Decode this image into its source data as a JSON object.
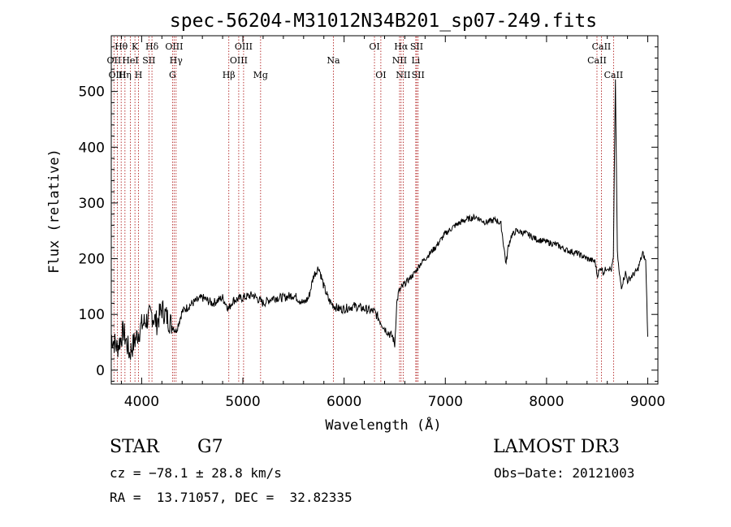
{
  "chart_data": {
    "type": "line",
    "title": "spec-56204-M31012N34B201_sp07-249.fits",
    "xlabel": "Wavelength (Å)",
    "ylabel": "Flux (relative)",
    "xlim": [
      3700,
      9100
    ],
    "ylim": [
      -25,
      600
    ],
    "x_ticks": [
      4000,
      5000,
      6000,
      7000,
      8000,
      9000
    ],
    "x_tick_labels": [
      "4000",
      "5000",
      "6000",
      "7000",
      "8000",
      "9000"
    ],
    "y_ticks": [
      0,
      100,
      200,
      300,
      400,
      500
    ],
    "y_tick_labels": [
      "0",
      "100",
      "200",
      "300",
      "400",
      "500"
    ],
    "grid": false,
    "series": [
      {
        "name": "spectrum",
        "color": "#000000",
        "x": [
          3700,
          3760,
          3820,
          3880,
          3950,
          4000,
          4050,
          4100,
          4150,
          4200,
          4250,
          4300,
          4340,
          4400,
          4500,
          4600,
          4700,
          4800,
          4860,
          4900,
          5000,
          5100,
          5200,
          5300,
          5400,
          5500,
          5600,
          5650,
          5700,
          5750,
          5800,
          5850,
          5900,
          5950,
          6000,
          6100,
          6200,
          6300,
          6350,
          6400,
          6450,
          6480,
          6500,
          6520,
          6540,
          6560,
          6580,
          6600,
          6650,
          6700,
          6750,
          6800,
          6900,
          7000,
          7100,
          7200,
          7300,
          7400,
          7500,
          7550,
          7600,
          7620,
          7650,
          7700,
          7800,
          7900,
          8000,
          8100,
          8200,
          8300,
          8400,
          8480,
          8500,
          8540,
          8560,
          8600,
          8640,
          8660,
          8680,
          8700,
          8720,
          8740,
          8780,
          8800,
          8850,
          8900,
          8950,
          8980,
          9000
        ],
        "y": [
          60,
          40,
          70,
          30,
          60,
          80,
          90,
          100,
          85,
          110,
          95,
          80,
          70,
          105,
          120,
          130,
          120,
          130,
          110,
          125,
          130,
          135,
          120,
          130,
          130,
          135,
          120,
          130,
          170,
          185,
          150,
          125,
          115,
          110,
          110,
          115,
          110,
          105,
          90,
          75,
          65,
          60,
          45,
          120,
          140,
          145,
          150,
          155,
          165,
          175,
          190,
          200,
          220,
          245,
          260,
          270,
          275,
          265,
          270,
          262,
          190,
          220,
          240,
          250,
          245,
          235,
          230,
          225,
          215,
          210,
          200,
          195,
          170,
          185,
          175,
          185,
          180,
          200,
          520,
          210,
          170,
          150,
          175,
          160,
          170,
          180,
          210,
          195,
          60
        ]
      }
    ],
    "lines": [
      {
        "label": "Hθ",
        "x": 3798,
        "row": 0
      },
      {
        "label": "OII",
        "x": 3727,
        "row": 1
      },
      {
        "label": "OIII",
        "x": 3760,
        "row": 2
      },
      {
        "label": "Hη",
        "x": 3835,
        "row": 2
      },
      {
        "label": "HeI",
        "x": 3889,
        "row": 1
      },
      {
        "label": "K",
        "x": 3934,
        "row": 0
      },
      {
        "label": "H",
        "x": 3969,
        "row": 2
      },
      {
        "label": "SII",
        "x": 4072,
        "row": 1
      },
      {
        "label": "Hδ",
        "x": 4102,
        "row": 0
      },
      {
        "label": "OIII",
        "x": 4321,
        "row": 0
      },
      {
        "label": "Hγ",
        "x": 4340,
        "row": 1
      },
      {
        "label": "G",
        "x": 4305,
        "row": 2
      },
      {
        "label": "Hβ",
        "x": 4861,
        "row": 2
      },
      {
        "label": "OIII",
        "x": 5007,
        "row": 0
      },
      {
        "label": "OIII",
        "x": 4959,
        "row": 1
      },
      {
        "label": "Mg",
        "x": 5175,
        "row": 2
      },
      {
        "label": "Na",
        "x": 5894,
        "row": 1
      },
      {
        "label": "OI",
        "x": 6300,
        "row": 0
      },
      {
        "label": "OI",
        "x": 6363,
        "row": 2
      },
      {
        "label": "Hα",
        "x": 6563,
        "row": 0
      },
      {
        "label": "NII",
        "x": 6548,
        "row": 1
      },
      {
        "label": "NII",
        "x": 6584,
        "row": 2
      },
      {
        "label": "SII",
        "x": 6717,
        "row": 0
      },
      {
        "label": "Li",
        "x": 6708,
        "row": 1
      },
      {
        "label": "SII",
        "x": 6731,
        "row": 2
      },
      {
        "label": "CaII",
        "x": 8542,
        "row": 0
      },
      {
        "label": "CaII",
        "x": 8498,
        "row": 1
      },
      {
        "label": "CaII",
        "x": 8662,
        "row": 2
      }
    ]
  },
  "info": {
    "object_class": "STAR",
    "subclass": "G7",
    "survey": "LAMOST DR3",
    "redshift_text": "cz = −78.1 ± 28.8 km/s",
    "obs_date_text": "Obs−Date: 20121003",
    "coords_text": "RA =  13.71057, DEC =  32.82335"
  }
}
